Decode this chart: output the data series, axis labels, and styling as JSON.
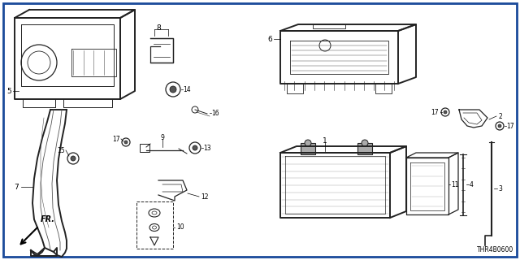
{
  "bg_color": "#ffffff",
  "border_color": "#1a4a9a",
  "border_linewidth": 2.0,
  "diagram_code": "THR4B0600",
  "label_fontsize": 6.5,
  "small_label_fontsize": 5.5,
  "dgray": "#222222",
  "mgray": "#555555",
  "lgray": "#aaaaaa",
  "lw_thick": 1.4,
  "lw_med": 0.9,
  "lw_thin": 0.5
}
